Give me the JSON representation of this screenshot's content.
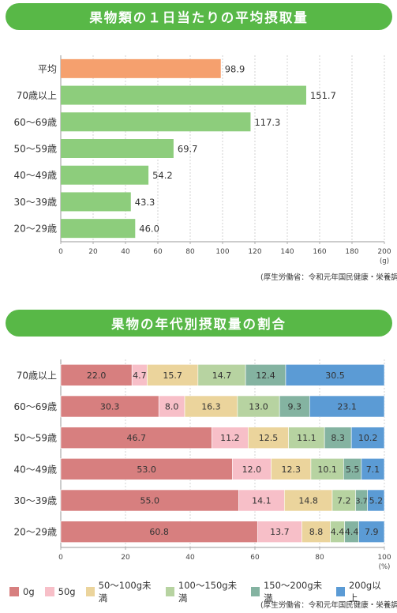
{
  "section1": {
    "title": "果物類の１日当たりの平均摂取量",
    "source": "(厚生労働省：令和元年国民健康・栄養調査)"
  },
  "section2": {
    "title": "果物の年代別摂取量の割合",
    "source": "(厚生労働省：令和元年国民健康・栄養調査)"
  },
  "colors": {
    "banner": "#58b847",
    "bar_avg": "#f5a06e",
    "bar_age": "#8dcd7c"
  },
  "chart_data": [
    {
      "type": "bar",
      "orientation": "horizontal",
      "categories": [
        "平均",
        "70歳以上",
        "60〜69歳",
        "50〜59歳",
        "40〜49歳",
        "30〜39歳",
        "20〜29歳"
      ],
      "values": [
        98.9,
        151.7,
        117.3,
        69.7,
        54.2,
        43.3,
        46.0
      ],
      "value_labels": [
        "98.9",
        "151.7",
        "117.3",
        "69.7",
        "54.2",
        "43.3",
        "46.0"
      ],
      "xlim": [
        0,
        200
      ],
      "xticks": [
        "0",
        "20",
        "40",
        "60",
        "80",
        "100",
        "120",
        "140",
        "160",
        "180",
        "200"
      ],
      "unit": "(g)",
      "grid": "vertical dashed"
    },
    {
      "type": "bar",
      "orientation": "horizontal",
      "stacked": true,
      "categories": [
        "70歳以上",
        "60〜69歳",
        "50〜59歳",
        "40〜49歳",
        "30〜39歳",
        "20〜29歳"
      ],
      "series": [
        {
          "name": "0g",
          "color": "#d77f7f",
          "values": [
            22.0,
            30.3,
            46.7,
            53.0,
            55.0,
            60.8
          ],
          "labels": [
            "22.0",
            "30.3",
            "46.7",
            "53.0",
            "55.0",
            "60.8"
          ]
        },
        {
          "name": "50g",
          "color": "#f7bfc8",
          "values": [
            4.7,
            8.0,
            11.2,
            12.0,
            14.1,
            13.7
          ],
          "labels": [
            "4.7",
            "8.0",
            "11.2",
            "12.0",
            "14.1",
            "13.7"
          ]
        },
        {
          "name": "50〜100g未満",
          "color": "#ebd49c",
          "values": [
            15.7,
            16.3,
            12.5,
            12.3,
            14.8,
            8.8
          ],
          "labels": [
            "15.7",
            "16.3",
            "12.5",
            "12.3",
            "14.8",
            "8.8"
          ]
        },
        {
          "name": "100〜150g未満",
          "color": "#b7d3a1",
          "values": [
            14.7,
            13.0,
            11.1,
            10.1,
            7.2,
            4.4
          ],
          "labels": [
            "14.7",
            "13.0",
            "11.1",
            "10.1",
            "7.2",
            "4.4"
          ]
        },
        {
          "name": "150〜200g未満",
          "color": "#84b3a1",
          "values": [
            12.4,
            9.3,
            8.3,
            5.5,
            3.7,
            4.4
          ],
          "labels": [
            "12.4",
            "9.3",
            "8.3",
            "5.5",
            "3.7",
            "4.4"
          ]
        },
        {
          "name": "200g以上",
          "color": "#5b9bd5",
          "values": [
            30.5,
            23.1,
            10.2,
            7.1,
            5.2,
            7.9
          ],
          "labels": [
            "30.5",
            "23.1",
            "10.2",
            "7.1",
            "5.2",
            "7.9"
          ]
        }
      ],
      "xlim": [
        0,
        100
      ],
      "xticks": [
        "0",
        "20",
        "40",
        "60",
        "80",
        "100"
      ],
      "unit": "(%)",
      "grid": "vertical dashed"
    }
  ]
}
